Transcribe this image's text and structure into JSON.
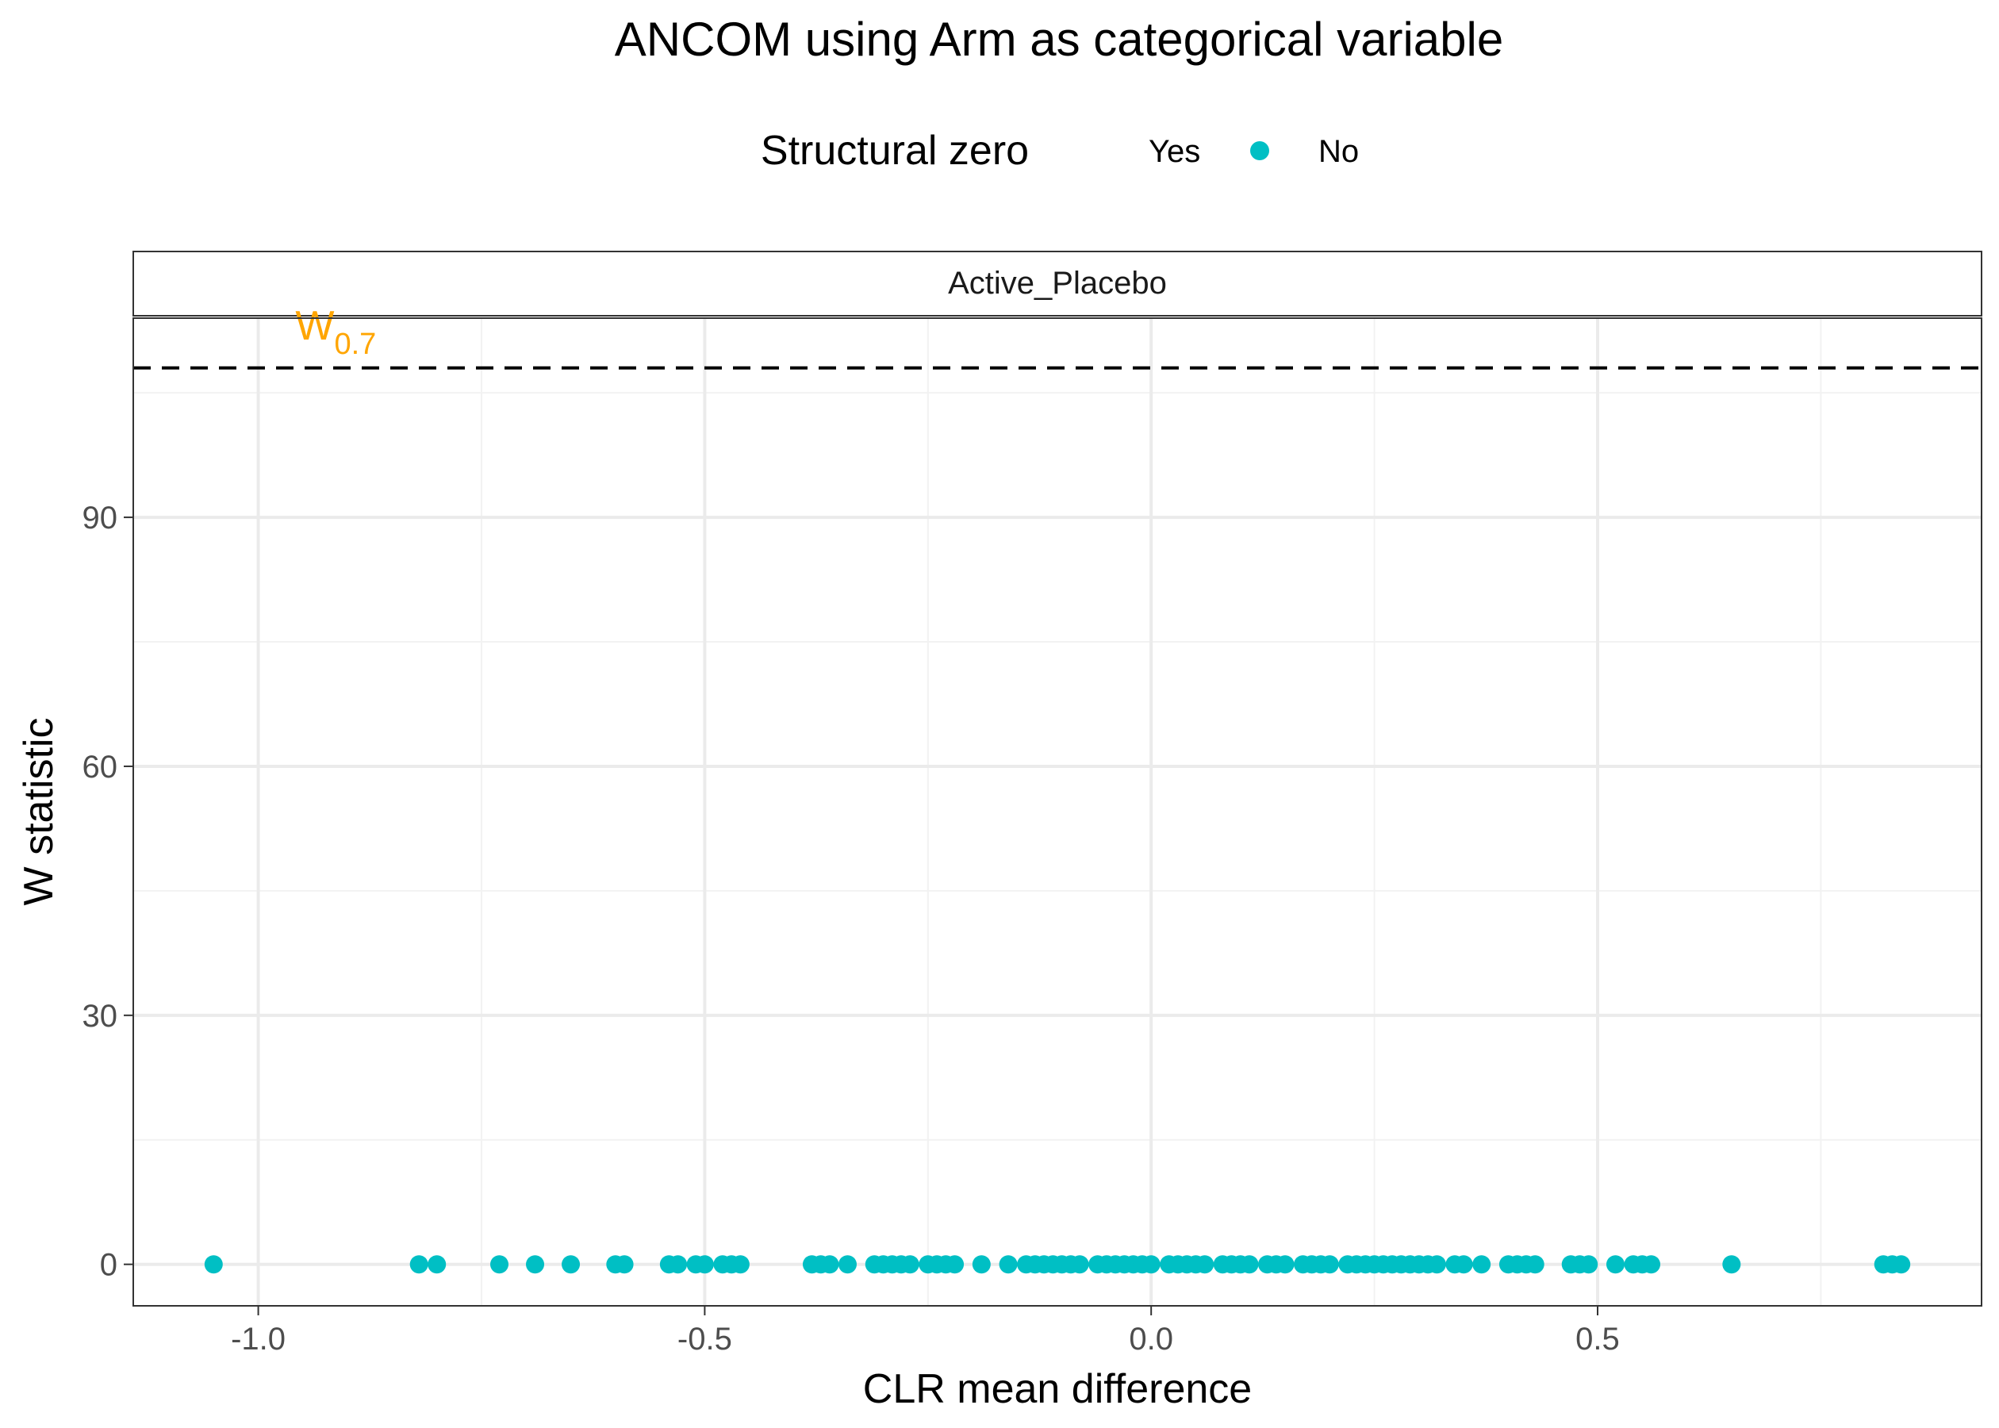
{
  "chart_data": {
    "type": "scatter",
    "title": "ANCOM using Arm as categorical variable",
    "xlabel": "CLR mean difference",
    "ylabel": "W statistic",
    "facet": "Active_Placebo",
    "xlim": [
      -1.14,
      0.93
    ],
    "ylim": [
      -5,
      114
    ],
    "xticks": [
      -1.0,
      -0.5,
      0.0,
      0.5
    ],
    "xtick_labels": [
      "-1.0",
      "-0.5",
      "0.0",
      "0.5"
    ],
    "yticks": [
      0,
      30,
      60,
      90
    ],
    "ytick_labels": [
      "0",
      "30",
      "60",
      "90"
    ],
    "grid": true,
    "legend": {
      "title": "Structural zero",
      "placement": "top",
      "entries": [
        {
          "label": "Yes",
          "color": ""
        },
        {
          "label": "No",
          "color": "#00BFC4"
        }
      ]
    },
    "threshold": {
      "y": 108,
      "style": "dashed",
      "label_main": "W",
      "label_sub": "0.7",
      "label_color": "#FFA500",
      "label_x": -0.93
    },
    "series": [
      {
        "name": "No",
        "color": "#00BFC4",
        "points": [
          [
            -1.05,
            0
          ],
          [
            -0.82,
            0
          ],
          [
            -0.8,
            0
          ],
          [
            -0.73,
            0
          ],
          [
            -0.69,
            0
          ],
          [
            -0.65,
            0
          ],
          [
            -0.6,
            0
          ],
          [
            -0.59,
            0
          ],
          [
            -0.54,
            0
          ],
          [
            -0.53,
            0
          ],
          [
            -0.51,
            0
          ],
          [
            -0.5,
            0
          ],
          [
            -0.48,
            0
          ],
          [
            -0.47,
            0
          ],
          [
            -0.46,
            0
          ],
          [
            -0.38,
            0
          ],
          [
            -0.37,
            0
          ],
          [
            -0.36,
            0
          ],
          [
            -0.34,
            0
          ],
          [
            -0.31,
            0
          ],
          [
            -0.3,
            0
          ],
          [
            -0.29,
            0
          ],
          [
            -0.28,
            0
          ],
          [
            -0.27,
            0
          ],
          [
            -0.25,
            0
          ],
          [
            -0.24,
            0
          ],
          [
            -0.23,
            0
          ],
          [
            -0.22,
            0
          ],
          [
            -0.19,
            0
          ],
          [
            -0.16,
            0
          ],
          [
            -0.14,
            0
          ],
          [
            -0.13,
            0
          ],
          [
            -0.12,
            0
          ],
          [
            -0.11,
            0
          ],
          [
            -0.1,
            0
          ],
          [
            -0.09,
            0
          ],
          [
            -0.08,
            0
          ],
          [
            -0.06,
            0
          ],
          [
            -0.05,
            0
          ],
          [
            -0.04,
            0
          ],
          [
            -0.03,
            0
          ],
          [
            -0.02,
            0
          ],
          [
            -0.01,
            0
          ],
          [
            0.0,
            0
          ],
          [
            0.02,
            0
          ],
          [
            0.03,
            0
          ],
          [
            0.04,
            0
          ],
          [
            0.05,
            0
          ],
          [
            0.06,
            0
          ],
          [
            0.08,
            0
          ],
          [
            0.09,
            0
          ],
          [
            0.1,
            0
          ],
          [
            0.11,
            0
          ],
          [
            0.13,
            0
          ],
          [
            0.14,
            0
          ],
          [
            0.15,
            0
          ],
          [
            0.17,
            0
          ],
          [
            0.18,
            0
          ],
          [
            0.19,
            0
          ],
          [
            0.2,
            0
          ],
          [
            0.22,
            0
          ],
          [
            0.23,
            0
          ],
          [
            0.24,
            0
          ],
          [
            0.25,
            0
          ],
          [
            0.26,
            0
          ],
          [
            0.27,
            0
          ],
          [
            0.28,
            0
          ],
          [
            0.29,
            0
          ],
          [
            0.3,
            0
          ],
          [
            0.31,
            0
          ],
          [
            0.32,
            0
          ],
          [
            0.34,
            0
          ],
          [
            0.35,
            0
          ],
          [
            0.37,
            0
          ],
          [
            0.4,
            0
          ],
          [
            0.41,
            0
          ],
          [
            0.42,
            0
          ],
          [
            0.43,
            0
          ],
          [
            0.47,
            0
          ],
          [
            0.48,
            0
          ],
          [
            0.49,
            0
          ],
          [
            0.52,
            0
          ],
          [
            0.54,
            0
          ],
          [
            0.55,
            0
          ],
          [
            0.56,
            0
          ],
          [
            0.65,
            0
          ],
          [
            0.82,
            0
          ],
          [
            0.83,
            0
          ],
          [
            0.84,
            0
          ]
        ]
      }
    ]
  }
}
